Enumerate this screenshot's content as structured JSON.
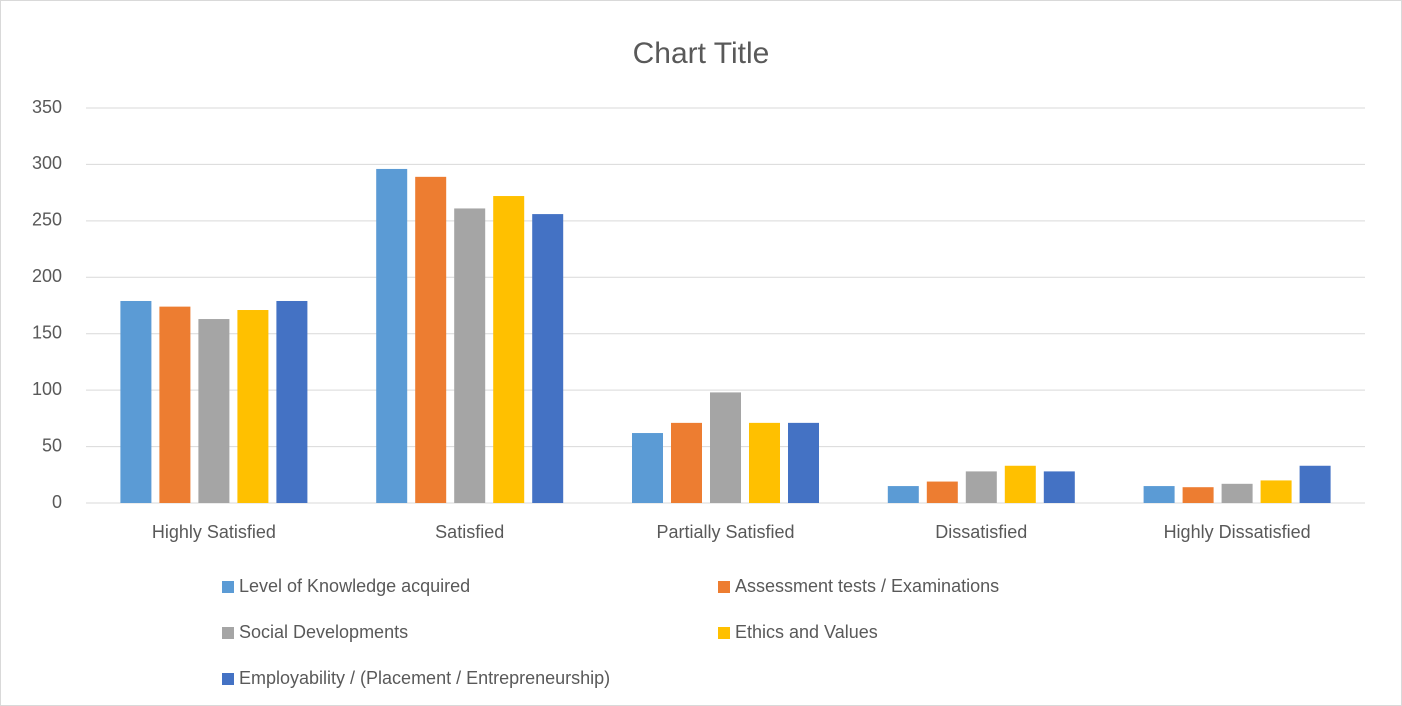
{
  "chart_data": {
    "type": "bar",
    "title": "Chart Title",
    "categories": [
      "Highly Satisfied",
      "Satisfied",
      "Partially Satisfied",
      "Dissatisfied",
      "Highly Dissatisfied"
    ],
    "series": [
      {
        "name": "Level of Knowledge acquired",
        "color": "#5b9bd5",
        "values": [
          179,
          296,
          62,
          15,
          15
        ]
      },
      {
        "name": "Assessment tests / Examinations",
        "color": "#ed7d31",
        "values": [
          174,
          289,
          71,
          19,
          14
        ]
      },
      {
        "name": "Social Developments",
        "color": "#a5a5a5",
        "values": [
          163,
          261,
          98,
          28,
          17
        ]
      },
      {
        "name": "Ethics and Values",
        "color": "#ffc000",
        "values": [
          171,
          272,
          71,
          33,
          20
        ]
      },
      {
        "name": "Employability / (Placement / Entrepreneurship)",
        "color": "#4472c4",
        "values": [
          179,
          256,
          71,
          28,
          33
        ]
      }
    ],
    "ylim": [
      0,
      350
    ],
    "yticks": [
      0,
      50,
      100,
      150,
      200,
      250,
      300,
      350
    ],
    "grid": true,
    "legend": "bottom"
  }
}
